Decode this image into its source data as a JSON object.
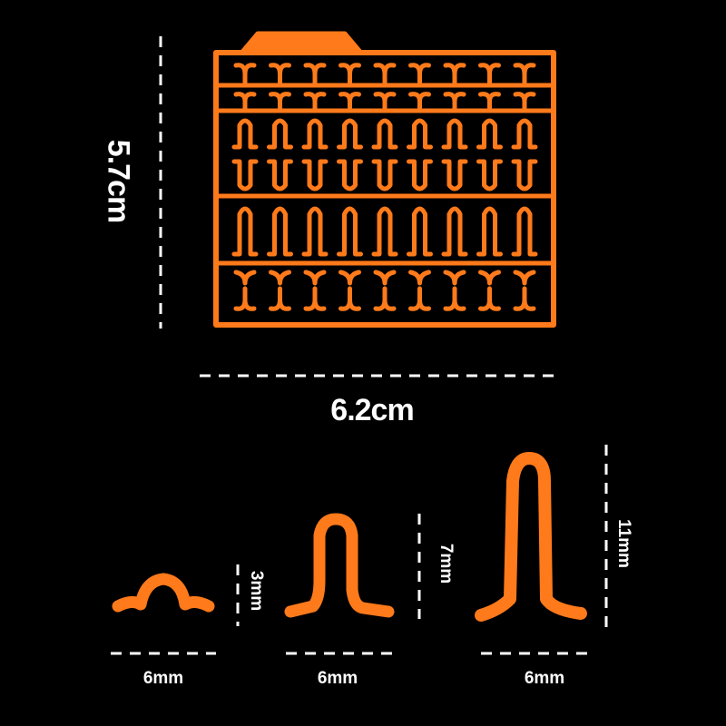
{
  "dimensions": {
    "sheet_height": "5.7cm",
    "sheet_width": "6.2cm",
    "small_stop": {
      "width": "6mm",
      "height": "3mm"
    },
    "medium_stop": {
      "width": "6mm",
      "height": "7mm"
    },
    "large_stop": {
      "width": "6mm",
      "height": "11mm"
    }
  },
  "colors": {
    "background": "#000000",
    "product": "#ff7a1a",
    "text": "#ffffff"
  }
}
